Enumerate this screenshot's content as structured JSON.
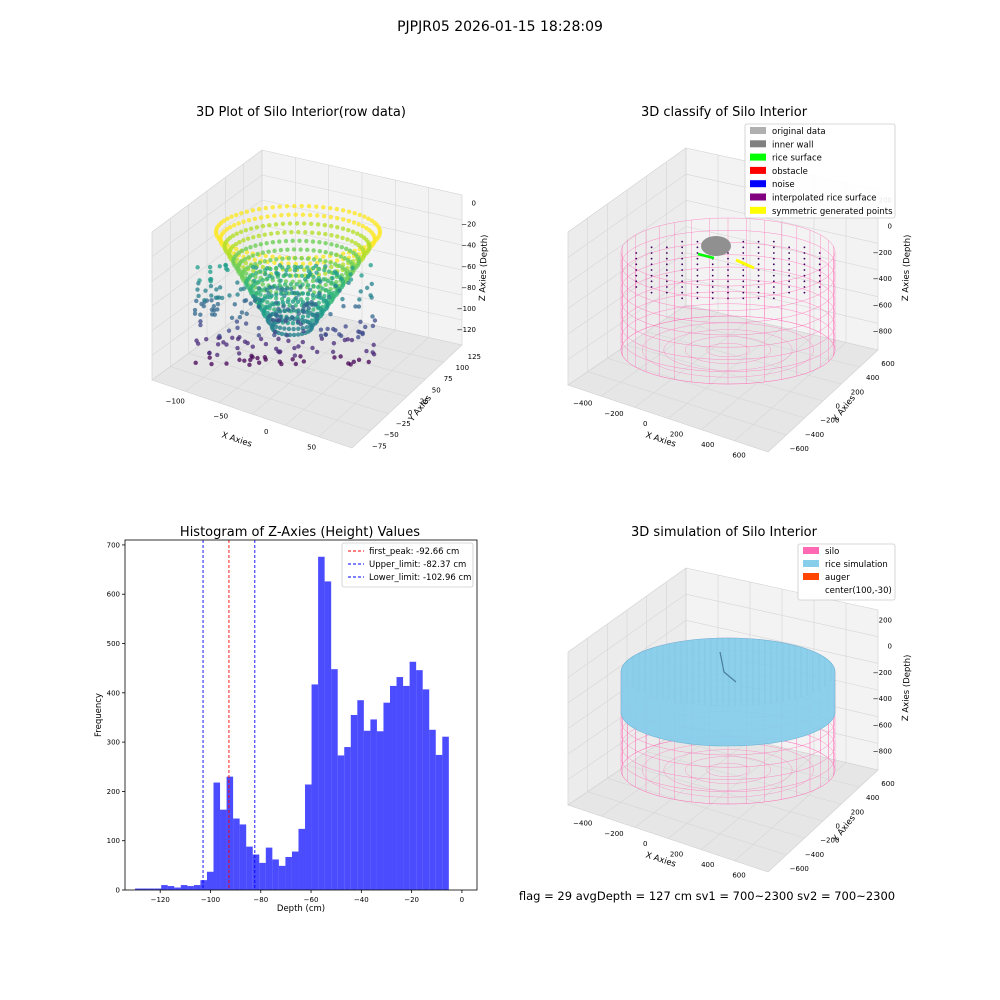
{
  "figure": {
    "suptitle": "PJPJR05 2026-01-15 18:28:09",
    "footer": "flag = 29  avgDepth = 127 cm  sv1 = 700~2300  sv2 = 700~2300"
  },
  "panels": {
    "raw": {
      "title": "3D Plot of Silo Interior(row data)",
      "xlabel": "X Axies",
      "ylabel": "Y Axies",
      "zlabel": "Z Axies (Depth)",
      "xticks": [
        "−100",
        "−50",
        "0",
        "50"
      ],
      "yticks": [
        "−75",
        "−50",
        "−25",
        "0",
        "25",
        "50",
        "75",
        "100",
        "125"
      ],
      "zticks": [
        "0",
        "−20",
        "−40",
        "−60",
        "−80",
        "−100",
        "−120"
      ],
      "colormap": "viridis"
    },
    "classify": {
      "title": "3D classify of Silo Interior",
      "xlabel": "X Axies",
      "ylabel": "Y Axies",
      "zlabel": "Z Axies (Depth)",
      "xticks": [
        "−400",
        "−200",
        "0",
        "200",
        "400",
        "600"
      ],
      "yticks": [
        "−600",
        "−400",
        "−200",
        "0",
        "200",
        "400",
        "600"
      ],
      "zticks": [
        "200",
        "0",
        "−200",
        "−400",
        "−600",
        "−800"
      ],
      "legend": [
        {
          "label": "original data",
          "color": "#b0b0b0"
        },
        {
          "label": "inner wall",
          "color": "#808080"
        },
        {
          "label": "rice surface",
          "color": "#00ff00"
        },
        {
          "label": "obstacle",
          "color": "#ff0000"
        },
        {
          "label": "noise",
          "color": "#0000ff"
        },
        {
          "label": "interpolated rice surface",
          "color": "#800080"
        },
        {
          "label": "symmetric generated points",
          "color": "#ffff00"
        }
      ]
    },
    "histogram": {
      "title": "Histogram of Z-Axies (Height) Values",
      "xlabel": "Depth (cm)",
      "ylabel": "Frequency",
      "legend": [
        {
          "label": "first_peak: -92.66 cm",
          "color": "#ff0000"
        },
        {
          "label": "Upper_limit: -82.37 cm",
          "color": "#0000ff"
        },
        {
          "label": "Lower_limit: -102.96 cm",
          "color": "#0000ff"
        }
      ]
    },
    "simulation": {
      "title": "3D simulation of Silo Interior",
      "xlabel": "X Axies",
      "ylabel": "Y Axies",
      "zlabel": "Z Axies (Depth)",
      "xticks": [
        "−400",
        "−200",
        "0",
        "200",
        "400",
        "600"
      ],
      "yticks": [
        "−600",
        "−400",
        "−200",
        "0",
        "200",
        "400",
        "600"
      ],
      "zticks": [
        "200",
        "0",
        "−200",
        "−400",
        "−600",
        "−800"
      ],
      "legend": [
        {
          "label": "silo",
          "color": "#ff69b4"
        },
        {
          "label": "rice simulation",
          "color": "#87ceeb"
        },
        {
          "label": "auger",
          "color": "#ff4500"
        },
        {
          "label": "center(100,-30)",
          "color": ""
        }
      ]
    }
  },
  "chart_data": {
    "type": "bar",
    "title": "Histogram of Z-Axies (Height) Values",
    "xlabel": "Depth (cm)",
    "ylabel": "Frequency",
    "bar_color": "#0000ff",
    "xlim": [
      -134,
      6
    ],
    "ylim": [
      0,
      710
    ],
    "xticks": [
      -120,
      -100,
      -80,
      -60,
      -40,
      -20,
      0
    ],
    "yticks": [
      0,
      100,
      200,
      300,
      400,
      500,
      600,
      700
    ],
    "bin_start": -130.0,
    "bin_width": 2.6,
    "counts": [
      3,
      3,
      3,
      3,
      10,
      8,
      5,
      10,
      8,
      10,
      20,
      37,
      218,
      163,
      230,
      145,
      133,
      88,
      72,
      55,
      86,
      62,
      49,
      67,
      78,
      124,
      214,
      417,
      676,
      626,
      448,
      273,
      290,
      355,
      385,
      323,
      346,
      322,
      380,
      414,
      432,
      414,
      463,
      446,
      407,
      325,
      274,
      311
    ],
    "vlines": [
      {
        "x": -92.66,
        "color": "#ff0000",
        "label": "first_peak: -92.66 cm"
      },
      {
        "x": -82.37,
        "color": "#0000ff",
        "label": "Upper_limit: -82.37 cm"
      },
      {
        "x": -102.96,
        "color": "#0000ff",
        "label": "Lower_limit: -102.96 cm"
      }
    ]
  }
}
